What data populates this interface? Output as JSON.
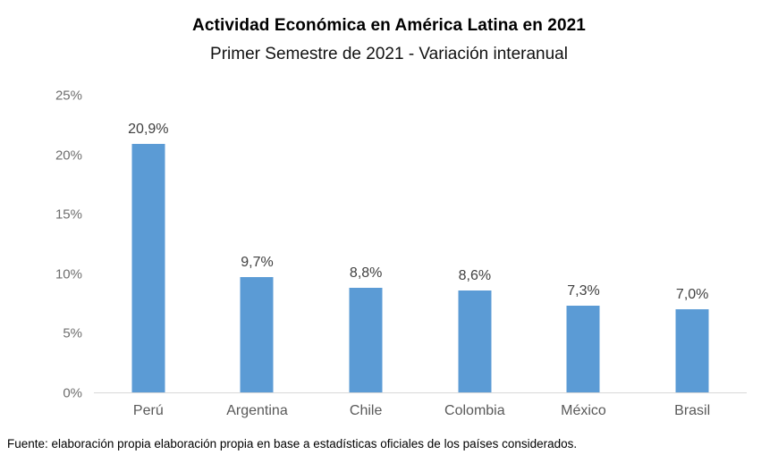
{
  "header": {
    "title": "Actividad Económica en América Latina en 2021",
    "subtitle": "Primer Semestre de 2021 - Variación interanual"
  },
  "chart_data": {
    "type": "bar",
    "title": "Actividad Económica en América Latina en 2021",
    "subtitle": "Primer Semestre de 2021 - Variación interanual",
    "categories": [
      "Perú",
      "Argentina",
      "Chile",
      "Colombia",
      "México",
      "Brasil"
    ],
    "values": [
      20.9,
      9.7,
      8.8,
      8.6,
      7.3,
      7.0
    ],
    "value_labels": [
      "20,9%",
      "9,7%",
      "8,8%",
      "8,6%",
      "7,3%",
      "7,0%"
    ],
    "xlabel": "",
    "ylabel": "",
    "ylim": [
      0,
      25
    ],
    "ytick_values": [
      0,
      5,
      10,
      15,
      20,
      25
    ],
    "ytick_labels": [
      "0%",
      "5%",
      "10%",
      "15%",
      "20%",
      "25%"
    ],
    "grid": false,
    "legend": false,
    "bar_color": "#5b9bd5"
  },
  "footer": {
    "source": "Fuente: elaboración propia elaboración propia en base a estadísticas oficiales de los países considerados."
  },
  "colors": {
    "bar": "#5b9bd5",
    "axis_line": "#d9d9d9",
    "tick_label": "#6e6e6e",
    "data_label": "#404040",
    "category_label": "#595959",
    "title_text": "#000000",
    "background": "#ffffff"
  }
}
